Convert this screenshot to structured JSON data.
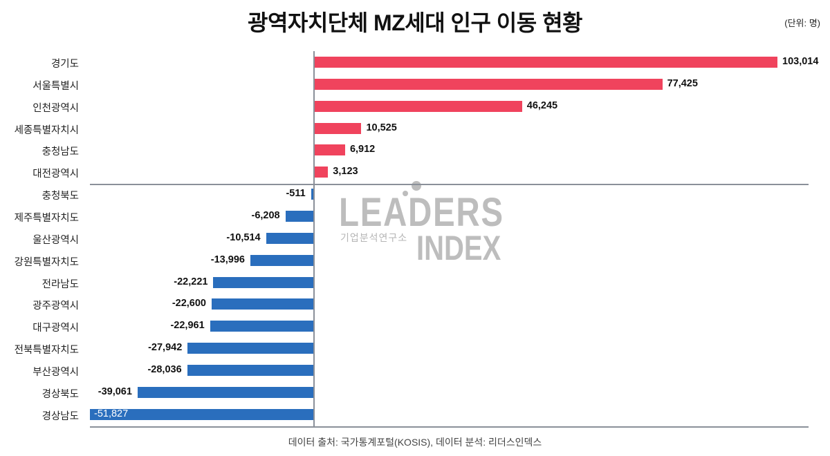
{
  "header": {
    "title": "광역자치단체 MZ세대 인구 이동 현황",
    "unit": "(단위: 명)"
  },
  "footer": {
    "source": "데이터 출처: 국가통계포털(KOSIS), 데이터 분석: 리더스인덱스"
  },
  "watermark": {
    "brand_top": "LEADERS",
    "brand_bottom": "INDEX",
    "subtitle": "기업분석연구소"
  },
  "colors": {
    "positive": "#f0435d",
    "negative": "#2a6ebd",
    "axis": "#8a9099"
  },
  "rows": [
    {
      "label": "경기도",
      "value": 103014,
      "display": "103,014"
    },
    {
      "label": "서울특별시",
      "value": 77425,
      "display": "77,425"
    },
    {
      "label": "인천광역시",
      "value": 46245,
      "display": "46,245"
    },
    {
      "label": "세종특별자치시",
      "value": 10525,
      "display": "10,525"
    },
    {
      "label": "충청남도",
      "value": 6912,
      "display": "6,912"
    },
    {
      "label": "대전광역시",
      "value": 3123,
      "display": "3,123"
    },
    {
      "label": "충청북도",
      "value": -511,
      "display": "-511"
    },
    {
      "label": "제주특별자치도",
      "value": -6208,
      "display": "-6,208"
    },
    {
      "label": "울산광역시",
      "value": -10514,
      "display": "-10,514"
    },
    {
      "label": "강원특별자치도",
      "value": -13996,
      "display": "-13,996"
    },
    {
      "label": "전라남도",
      "value": -22221,
      "display": "-22,221"
    },
    {
      "label": "광주광역시",
      "value": -22600,
      "display": "-22,600"
    },
    {
      "label": "대구광역시",
      "value": -22961,
      "display": "-22,961"
    },
    {
      "label": "전북특별자치도",
      "value": -27942,
      "display": "-27,942"
    },
    {
      "label": "부산광역시",
      "value": -28036,
      "display": "-28,036"
    },
    {
      "label": "경상북도",
      "value": -39061,
      "display": "-39,061"
    },
    {
      "label": "경상남도",
      "value": -51827,
      "display": "-51,827"
    }
  ],
  "chart_data": {
    "type": "bar",
    "orientation": "horizontal",
    "title": "광역자치단체 MZ세대 인구 이동 현황",
    "unit": "명",
    "xlabel": "",
    "ylabel": "",
    "categories": [
      "경기도",
      "서울특별시",
      "인천광역시",
      "세종특별자치시",
      "충청남도",
      "대전광역시",
      "충청북도",
      "제주특별자치도",
      "울산광역시",
      "강원특별자치도",
      "전라남도",
      "광주광역시",
      "대구광역시",
      "전북특별자치도",
      "부산광역시",
      "경상북도",
      "경상남도"
    ],
    "values": [
      103014,
      77425,
      46245,
      10525,
      6912,
      3123,
      -511,
      -6208,
      -10514,
      -13996,
      -22221,
      -22600,
      -22961,
      -27942,
      -28036,
      -39061,
      -51827
    ],
    "data_labels": true,
    "grid": false,
    "legend": null,
    "colors": {
      "positive": "#f0435d",
      "negative": "#2a6ebd"
    },
    "source": "데이터 출처: 국가통계포털(KOSIS), 데이터 분석: 리더스인덱스"
  }
}
